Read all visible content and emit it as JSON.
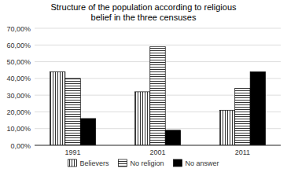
{
  "chart_data": {
    "type": "bar",
    "title": "Structure of the population according to religious\nbelief in the three censuses",
    "categories": [
      "1991",
      "2001",
      "2011"
    ],
    "series": [
      {
        "name": "Believers",
        "color": "white",
        "values": [
          0.44,
          0.32,
          0.21
        ]
      },
      {
        "name": "No religion",
        "color": "white",
        "values": [
          0.4,
          0.59,
          0.34
        ]
      },
      {
        "name": "No answer",
        "color": "black",
        "values": [
          0.16,
          0.09,
          0.44
        ]
      }
    ],
    "ylim": [
      0,
      0.7
    ],
    "yticks": [
      {
        "value": 0.0,
        "label": "0,00%"
      },
      {
        "value": 0.1,
        "label": "10,00%"
      },
      {
        "value": 0.2,
        "label": "20,00%"
      },
      {
        "value": 0.3,
        "label": "30,00%"
      },
      {
        "value": 0.4,
        "label": "40,00%"
      },
      {
        "value": 0.5,
        "label": "50,00%"
      },
      {
        "value": 0.6,
        "label": "60,00%"
      },
      {
        "value": 0.7,
        "label": "70,00%"
      }
    ],
    "grid": true,
    "legend": "bottom"
  }
}
